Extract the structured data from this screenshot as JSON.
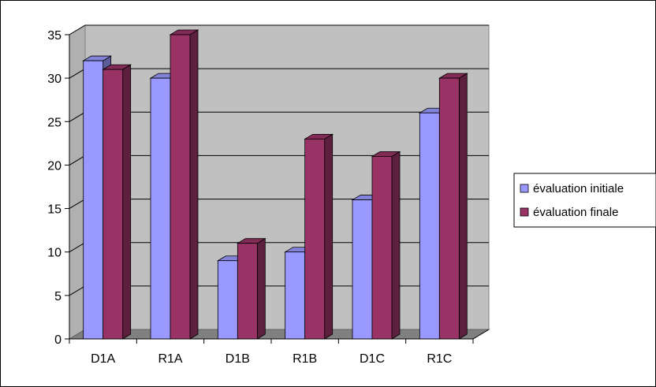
{
  "chart_data": {
    "type": "bar",
    "categories": [
      "D1A",
      "R1A",
      "D1B",
      "R1B",
      "D1C",
      "R1C"
    ],
    "series": [
      {
        "name": "évaluation initiale",
        "values": [
          32,
          30,
          9,
          10,
          16,
          26
        ],
        "color": "#9999ff"
      },
      {
        "name": "évaluation finale",
        "values": [
          31,
          35,
          11,
          23,
          21,
          30
        ],
        "color": "#993366"
      }
    ],
    "ylim": [
      0,
      35
    ],
    "yticks": [
      0,
      5,
      10,
      15,
      20,
      25,
      30,
      35
    ],
    "grid": true,
    "three_d": true,
    "legend_position": "right",
    "colors": {
      "wall": "#c0c0c0",
      "floor": "#808080",
      "grid": "#000000"
    }
  }
}
